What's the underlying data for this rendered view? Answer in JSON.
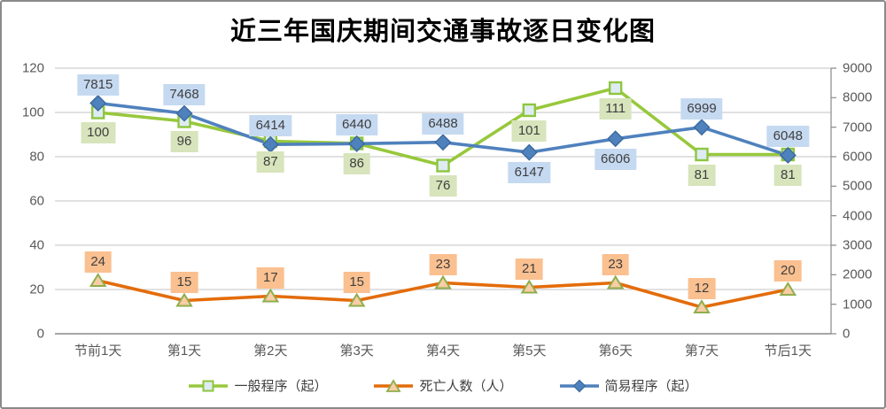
{
  "chart_data": {
    "type": "line",
    "title": "近三年国庆期间交通事故逐日变化图",
    "categories": [
      "节前1天",
      "第1天",
      "第2天",
      "第3天",
      "第4天",
      "第5天",
      "第6天",
      "第7天",
      "节后1天"
    ],
    "series": [
      {
        "name": "一般程序（起）",
        "axis": "left",
        "marker": "square",
        "values": [
          100,
          96,
          87,
          86,
          76,
          101,
          111,
          81,
          81
        ],
        "line_color": "#97c83c",
        "marker_fill": "#deebf3",
        "marker_stroke": "#8dc63f",
        "label_bg": "#d7e4bc",
        "label_side": "below",
        "label_side_overrides": {}
      },
      {
        "name": "死亡人数（人）",
        "axis": "left",
        "marker": "triangle",
        "values": [
          24,
          15,
          17,
          15,
          23,
          21,
          23,
          12,
          20
        ],
        "line_color": "#e36c0a",
        "marker_fill": "#f9cda5",
        "marker_stroke": "#8fae4c",
        "label_bg": "#fac090",
        "label_side": "above",
        "label_side_overrides": {}
      },
      {
        "name": "简易程序（起）",
        "axis": "right",
        "marker": "diamond",
        "values": [
          7815,
          7468,
          6414,
          6440,
          6488,
          6147,
          6606,
          6999,
          6048
        ],
        "line_color": "#4f81bd",
        "marker_fill": "#4f81bd",
        "marker_stroke": "#3a699e",
        "label_bg": "#c5d9f1",
        "label_side": "above",
        "label_side_overrides": {
          "5": "below",
          "6": "below"
        }
      }
    ],
    "axes": {
      "left": {
        "min": 0,
        "max": 120,
        "ticks": [
          "0",
          "20",
          "40",
          "60",
          "80",
          "100",
          "120"
        ]
      },
      "right": {
        "min": 0,
        "max": 9000,
        "ticks": [
          "0",
          "1000",
          "2000",
          "3000",
          "4000",
          "5000",
          "6000",
          "7000",
          "8000",
          "9000"
        ]
      }
    },
    "grid": true,
    "legend_position": "bottom",
    "colors": {
      "gridline": "#c3c3c3",
      "axis_line": "#898989",
      "tick_text": "#595959",
      "label_text": "#3f3f3f"
    }
  }
}
